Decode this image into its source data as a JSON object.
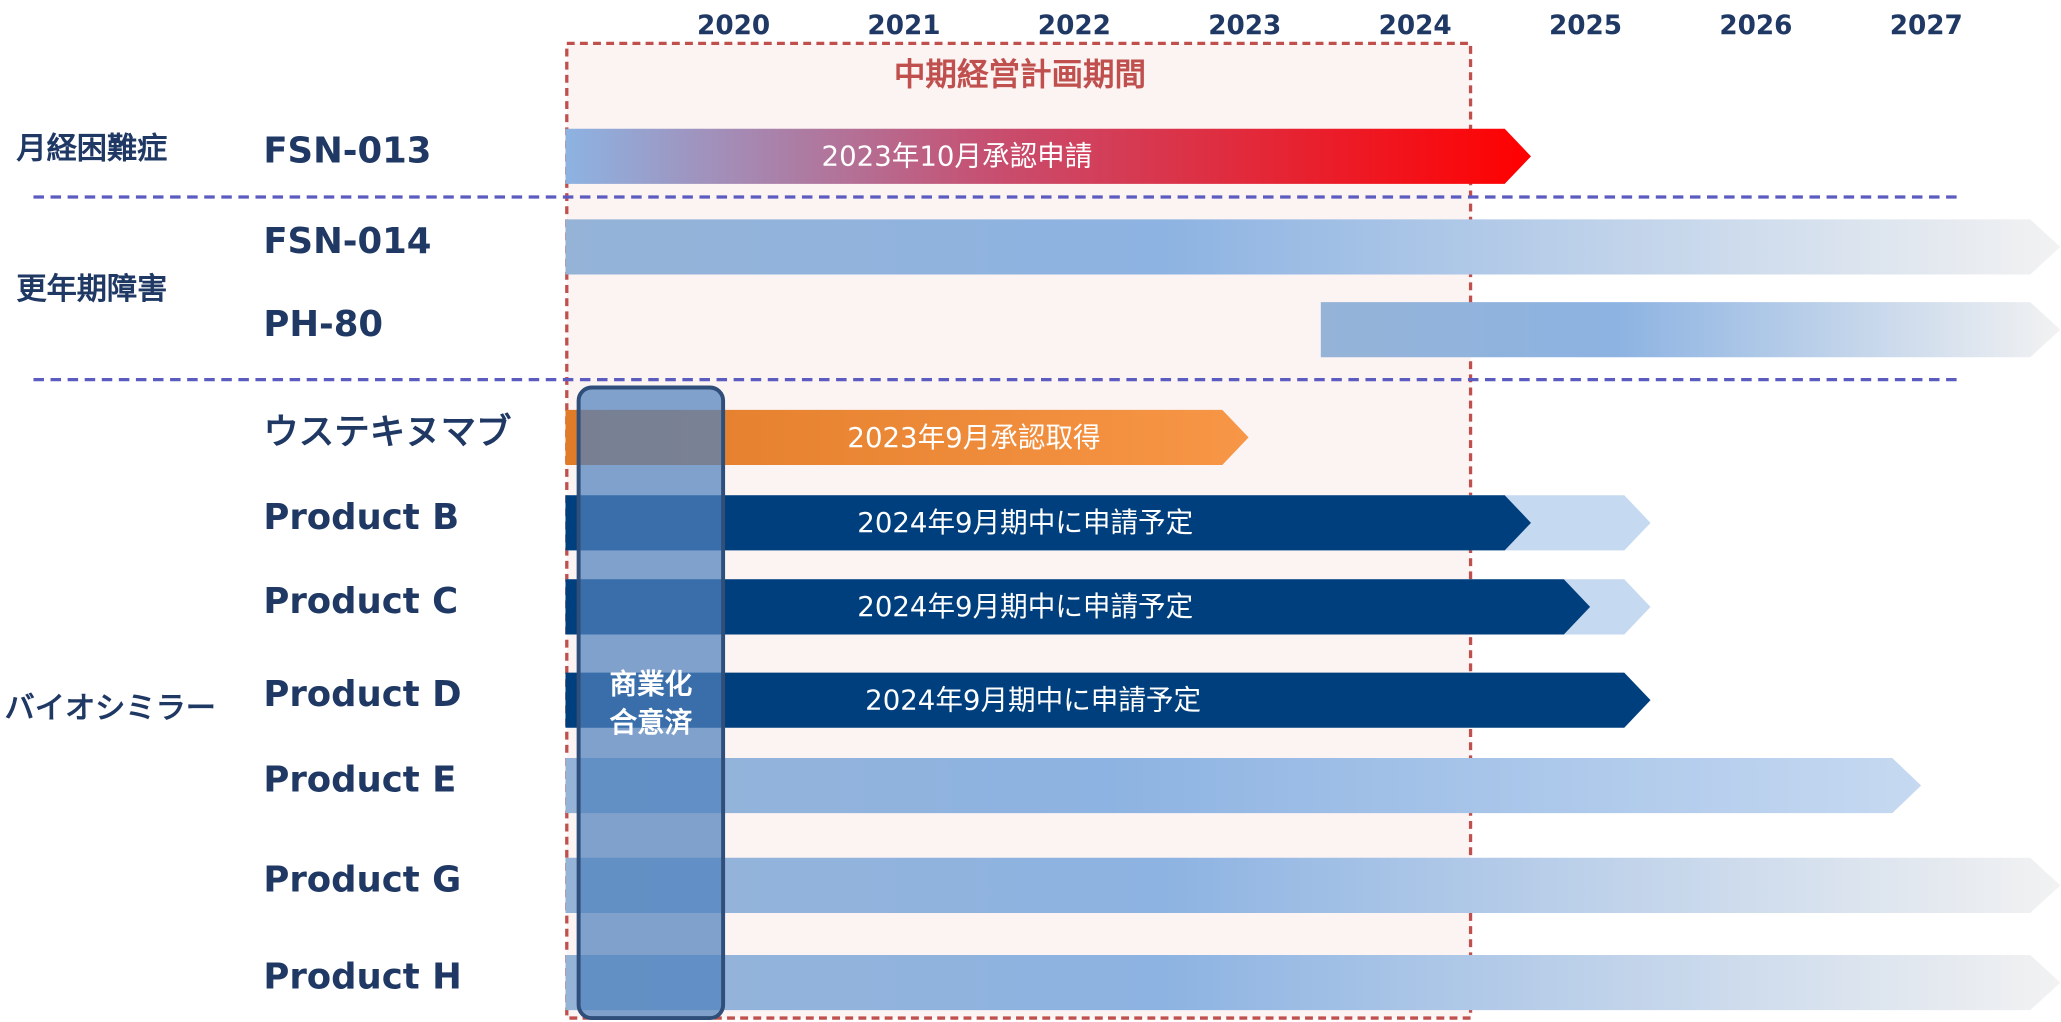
{
  "years": [
    "2020",
    "2021",
    "2022",
    "2023",
    "2024",
    "2025",
    "2026",
    "2027"
  ],
  "period_label": "中期経営計画期間",
  "groups": [
    "月経困難症",
    "更年期障害",
    "バイオシミラー"
  ],
  "rows": [
    {
      "name": "FSN-013",
      "bar_label": "2023年10月承認申請"
    },
    {
      "name": "FSN-014"
    },
    {
      "name": "PH-80"
    },
    {
      "name": "ウステキヌマブ",
      "bar_label": "2023年9月承認取得"
    },
    {
      "name": "Product B",
      "bar_label": "2024年9月期中に申請予定"
    },
    {
      "name": "Product C",
      "bar_label": "2024年9月期中に申請予定"
    },
    {
      "name": "Product D",
      "bar_label": "2024年9月期中に申請予定"
    },
    {
      "name": "Product E"
    },
    {
      "name": "Product G"
    },
    {
      "name": "Product H"
    }
  ],
  "badge": [
    "商業化",
    "合意済"
  ]
}
